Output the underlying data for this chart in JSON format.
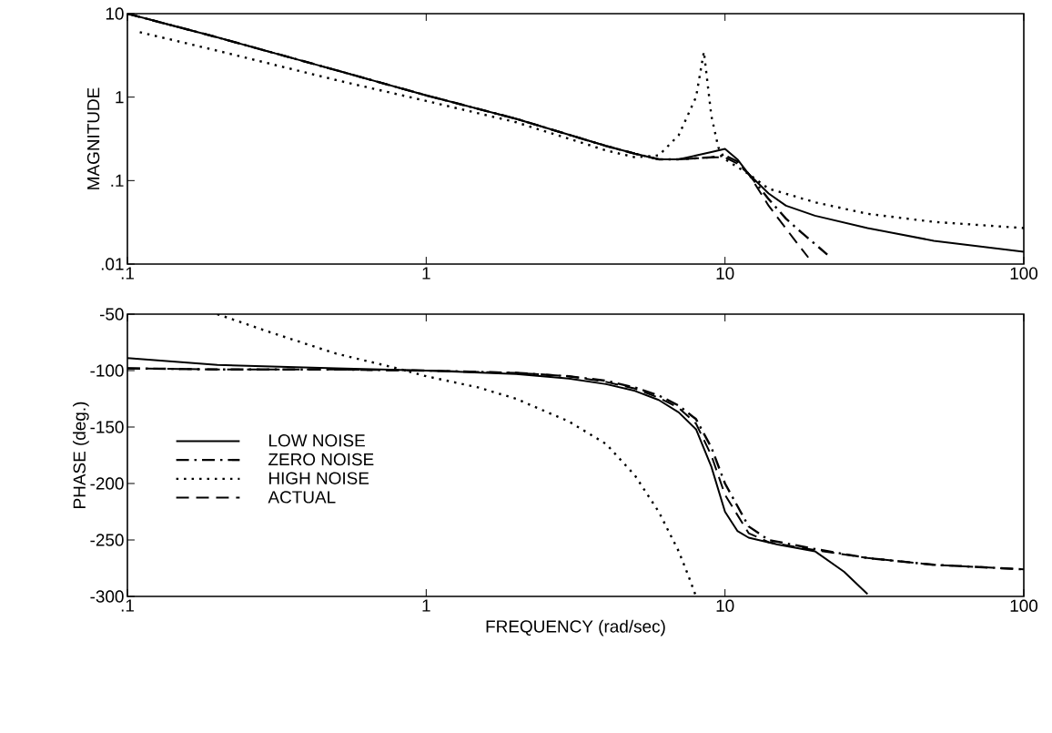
{
  "chart_data": [
    {
      "type": "line",
      "ylabel": "MAGNITUDE",
      "log": "xy",
      "xlim": [
        0.1,
        100
      ],
      "ylim": [
        0.01,
        10
      ],
      "xticks": [
        {
          "value": 0.1,
          "label": ".1"
        },
        1,
        10,
        100
      ],
      "yticks": [
        {
          "value": 0.01,
          "label": ".01"
        },
        {
          "value": 0.1,
          "label": ".1"
        },
        1,
        10
      ],
      "series": [
        {
          "color": "#000000",
          "line_style": "solid",
          "x": [
            0.1,
            0.2,
            0.5,
            1,
            2,
            4,
            5,
            6,
            7,
            8,
            9,
            10,
            11,
            12,
            14,
            16,
            20,
            30,
            50,
            100
          ],
          "values": [
            10,
            5.2,
            2.1,
            1.05,
            0.55,
            0.26,
            0.21,
            0.18,
            0.18,
            0.2,
            0.22,
            0.24,
            0.18,
            0.12,
            0.07,
            0.05,
            0.038,
            0.027,
            0.019,
            0.014
          ]
        },
        {
          "color": "#000000",
          "line_style": "dashdot",
          "x": [
            0.1,
            0.2,
            0.5,
            1,
            2,
            4,
            5,
            6,
            7,
            8,
            9,
            10,
            11,
            12,
            14,
            16,
            18,
            22
          ],
          "values": [
            10,
            5.2,
            2.1,
            1.05,
            0.55,
            0.26,
            0.21,
            0.18,
            0.18,
            0.185,
            0.19,
            0.2,
            0.17,
            0.12,
            0.06,
            0.035,
            0.024,
            0.013
          ]
        },
        {
          "color": "#000000",
          "line_style": "dotted",
          "x": [
            0.11,
            0.2,
            0.5,
            1,
            2,
            4,
            5,
            6,
            7,
            8,
            8.5,
            9,
            9.5,
            10,
            12,
            14,
            20,
            30,
            50,
            100
          ],
          "values": [
            6,
            3.6,
            1.6,
            0.9,
            0.5,
            0.23,
            0.19,
            0.2,
            0.35,
            1,
            3.5,
            0.6,
            0.25,
            0.18,
            0.12,
            0.08,
            0.055,
            0.04,
            0.032,
            0.027
          ]
        },
        {
          "color": "#000000",
          "line_style": "dashed",
          "x": [
            0.1,
            0.2,
            0.5,
            1,
            2,
            4,
            5,
            6,
            7,
            8,
            9,
            10,
            11,
            12,
            14,
            17,
            19
          ],
          "values": [
            10,
            5.2,
            2.1,
            1.05,
            0.55,
            0.26,
            0.21,
            0.18,
            0.18,
            0.185,
            0.19,
            0.19,
            0.16,
            0.12,
            0.05,
            0.02,
            0.012
          ]
        }
      ]
    },
    {
      "type": "line",
      "xlabel": "FREQUENCY    (rad/sec)",
      "ylabel": "PHASE (deg.)",
      "log": "x",
      "legend": "left",
      "xlim": [
        0.1,
        100
      ],
      "ylim": [
        -300,
        -50
      ],
      "xticks": [
        {
          "value": 0.1,
          "label": ".1"
        },
        1,
        10,
        100
      ],
      "yticks": [
        -50,
        -100,
        -150,
        -200,
        -250,
        -300
      ],
      "series": [
        {
          "name": "LOW NOISE",
          "color": "#000000",
          "line_style": "solid",
          "x": [
            0.1,
            0.2,
            0.5,
            1,
            2,
            3,
            4,
            5,
            6,
            7,
            8,
            9,
            10,
            11,
            12,
            15,
            20,
            25,
            30
          ],
          "values": [
            -89,
            -95,
            -98,
            -100,
            -103,
            -107,
            -112,
            -118,
            -126,
            -137,
            -152,
            -185,
            -225,
            -242,
            -248,
            -254,
            -260,
            -278,
            -298
          ]
        },
        {
          "name": "ZERO NOISE",
          "color": "#000000",
          "line_style": "dashdot",
          "x": [
            0.1,
            0.2,
            0.5,
            1,
            2,
            3,
            4,
            5,
            6,
            7,
            8,
            9,
            10,
            12,
            14,
            20,
            30,
            50,
            100
          ],
          "values": [
            -98,
            -99,
            -99,
            -100,
            -102,
            -105,
            -109,
            -115,
            -122,
            -131,
            -143,
            -168,
            -200,
            -238,
            -250,
            -258,
            -266,
            -272,
            -276
          ]
        },
        {
          "name": "HIGH NOISE",
          "color": "#000000",
          "line_style": "dotted",
          "x": [
            0.2,
            0.3,
            0.5,
            0.8,
            1,
            1.5,
            2,
            3,
            4,
            5,
            6,
            7,
            7.5,
            8
          ],
          "values": [
            -50,
            -66,
            -85,
            -98,
            -105,
            -115,
            -125,
            -145,
            -165,
            -193,
            -225,
            -260,
            -280,
            -300
          ]
        },
        {
          "name": "ACTUAL",
          "color": "#000000",
          "line_style": "dashed",
          "x": [
            0.1,
            0.2,
            0.5,
            1,
            2,
            3,
            4,
            5,
            6,
            7,
            8,
            9,
            10,
            12,
            14,
            20,
            30,
            50,
            100
          ],
          "values": [
            -98,
            -99,
            -99,
            -100,
            -102,
            -105,
            -110,
            -116,
            -124,
            -133,
            -147,
            -175,
            -210,
            -244,
            -252,
            -259,
            -266,
            -272,
            -276
          ]
        }
      ]
    }
  ]
}
